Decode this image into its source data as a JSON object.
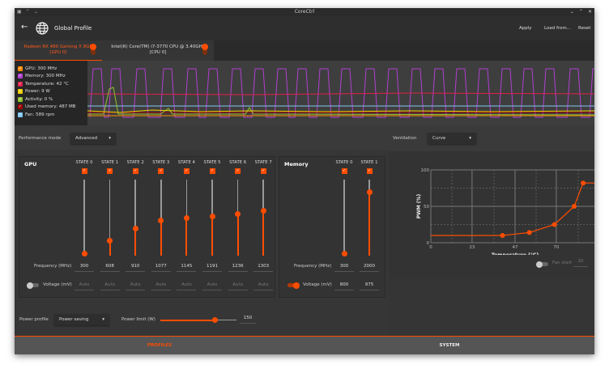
{
  "window": {
    "title": "CoreCtrl"
  },
  "header": {
    "title": "Global Profile",
    "apply": "Apply",
    "load_from": "Load from...",
    "reset": "Reset"
  },
  "tabs": [
    {
      "label": "Radeon RX 480 Gaming X 8GB",
      "sub": "[GPU 0]",
      "active": true
    },
    {
      "label": "Intel(R) Core(TM) i7-3770 CPU @ 3.40GHz",
      "sub": "[CPU 0]",
      "active": false
    }
  ],
  "monitor": {
    "legend": [
      {
        "label": "GPU: 300 MHz",
        "color": "#ff8c00"
      },
      {
        "label": "Memory: 300 MHz",
        "color": "#b040d0"
      },
      {
        "label": "Temperature: 42 °C",
        "color": "#e0204a"
      },
      {
        "label": "Power: 9 W",
        "color": "#f0d000"
      },
      {
        "label": "Activity: 0 %",
        "color": "#90c030"
      },
      {
        "label": "Used memory: 487 MB",
        "color": "#a00000"
      },
      {
        "label": "Fan: 589 rpm",
        "color": "#80c8f0"
      }
    ]
  },
  "performance": {
    "label": "Performance mode",
    "value": "Advanced"
  },
  "gpu": {
    "title": "GPU",
    "freq_label": "Frequency (MHz)",
    "volt_label": "Voltage (mV)",
    "voltage_enabled": false,
    "states": [
      {
        "label": "STATE 0",
        "freq": "300",
        "volt": "Auto",
        "level": 0.03
      },
      {
        "label": "STATE 1",
        "freq": "608",
        "volt": "Auto",
        "level": 0.2
      },
      {
        "label": "STATE 2",
        "freq": "910",
        "volt": "Auto",
        "level": 0.36
      },
      {
        "label": "STATE 3",
        "freq": "1077",
        "volt": "Auto",
        "level": 0.46
      },
      {
        "label": "STATE 4",
        "freq": "1145",
        "volt": "Auto",
        "level": 0.5
      },
      {
        "label": "STATE 5",
        "freq": "1191",
        "volt": "Auto",
        "level": 0.52
      },
      {
        "label": "STATE 6",
        "freq": "1236",
        "volt": "Auto",
        "level": 0.55
      },
      {
        "label": "STATE 7",
        "freq": "1303",
        "volt": "Auto",
        "level": 0.59
      }
    ]
  },
  "memory": {
    "title": "Memory",
    "freq_label": "Frequency (MHz)",
    "volt_label": "Voltage (mV)",
    "voltage_enabled": true,
    "states": [
      {
        "label": "STATE 0",
        "freq": "300",
        "volt": "800",
        "level": 0.03
      },
      {
        "label": "STATE 1",
        "freq": "2000",
        "volt": "975",
        "level": 0.84
      }
    ]
  },
  "power": {
    "profile_label": "Power profile",
    "profile_value": "Power saving",
    "limit_label": "Power limit (W)",
    "limit_value": "150",
    "limit_level": 0.72
  },
  "ventilation": {
    "label": "Ventilation",
    "value": "Curve",
    "fan_start_label": "Fan start",
    "fan_start_value": "10",
    "fan_start_enabled": false
  },
  "chart_data": {
    "type": "line",
    "xlabel": "Temperature (°C)",
    "ylabel": "PWM (%)",
    "xlim": [
      0,
      94
    ],
    "ylim": [
      0,
      100
    ],
    "xticks": [
      "0",
      "23",
      "47",
      "70",
      "94"
    ],
    "yticks": [
      "0",
      "50",
      "100"
    ],
    "grid": true,
    "points": [
      [
        40,
        10
      ],
      [
        55,
        14
      ],
      [
        69,
        25
      ],
      [
        80,
        50
      ],
      [
        85,
        82
      ]
    ],
    "start_value": 10,
    "end_value": 82,
    "color": "#ff4d00"
  },
  "bottom_tabs": [
    {
      "label": "PROFILES",
      "active": true
    },
    {
      "label": "SYSTEM",
      "active": false
    }
  ]
}
